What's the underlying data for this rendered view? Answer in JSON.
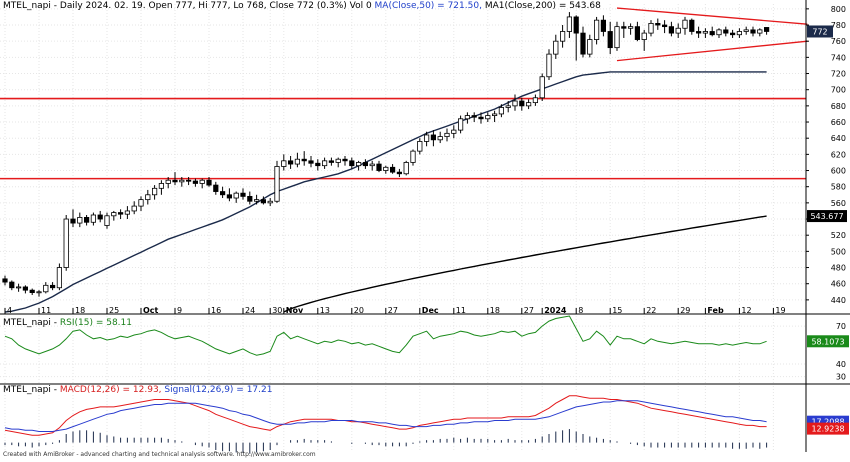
{
  "header_price": {
    "symbol": "MTEL_napi",
    "info": "- Daily 2024. 02. 19. Open 777, Hi 777, Lo 768, Close 772 (0.3%) Vol 0",
    "ma_label": "MA(Close,50) = 721.50,",
    "ma1_label": "MA1(Close,200) = 543.68"
  },
  "header_rsi": {
    "prefix": "MTEL_napi - ",
    "label": "RSI(15) = 58.11"
  },
  "header_macd": {
    "prefix": "MTEL_napi - ",
    "macd_label": "MACD(12,26) = 12.93,",
    "signal_label": "Signal(12,26,9) = 17.21"
  },
  "credit": "Created with AmiBroker - advanced charting and technical analysis software. http://www.amibroker.com",
  "colors": {
    "up_candle": "#ffffff",
    "down_candle": "#000000",
    "ma50": "#1b2a4a",
    "ma200": "#000000",
    "hline": "#e41a1c",
    "rsi": "#1a8a1a",
    "macd": "#e41a1c",
    "signal": "#2a3ccf",
    "grid": "#e6e6e6"
  },
  "chart_data": [
    {
      "type": "candlestick",
      "title": "MTEL_napi - Daily",
      "y_ticks": [
        440,
        460,
        480,
        500,
        520,
        540,
        560,
        580,
        600,
        620,
        640,
        660,
        680,
        700,
        720,
        740,
        760,
        780,
        800
      ],
      "ylim": [
        425,
        806
      ],
      "x_labels": [
        "4",
        "11",
        "18",
        "25",
        "Oct",
        "9",
        "16",
        "24",
        "30",
        "Nov",
        "13",
        "20",
        "27",
        "Dec",
        "11",
        "18",
        "27",
        "2024",
        "8",
        "15",
        "22",
        "29",
        "Feb",
        "12",
        "19"
      ],
      "x_label_bar_index": [
        0,
        5,
        10,
        15,
        20,
        25,
        30,
        35,
        39,
        41,
        46,
        51,
        56,
        61,
        66,
        71,
        76,
        79,
        84,
        89,
        94,
        99,
        103,
        108,
        113
      ],
      "last_price_label": "772",
      "ma200_label": "543.677",
      "ohlc": [
        [
          466,
          470,
          458,
          462
        ],
        [
          462,
          464,
          452,
          455
        ],
        [
          455,
          460,
          450,
          456
        ],
        [
          456,
          458,
          448,
          452
        ],
        [
          452,
          454,
          446,
          449
        ],
        [
          449,
          452,
          444,
          450
        ],
        [
          450,
          462,
          448,
          458
        ],
        [
          458,
          462,
          452,
          455
        ],
        [
          455,
          485,
          452,
          480
        ],
        [
          480,
          545,
          476,
          540
        ],
        [
          540,
          552,
          530,
          535
        ],
        [
          535,
          548,
          530,
          542
        ],
        [
          542,
          545,
          532,
          536
        ],
        [
          536,
          548,
          532,
          545
        ],
        [
          545,
          550,
          536,
          540
        ],
        [
          532,
          548,
          528,
          544
        ],
        [
          544,
          550,
          538,
          548
        ],
        [
          548,
          552,
          540,
          546
        ],
        [
          546,
          556,
          540,
          550
        ],
        [
          550,
          562,
          546,
          556
        ],
        [
          556,
          568,
          550,
          564
        ],
        [
          564,
          576,
          558,
          570
        ],
        [
          570,
          582,
          564,
          578
        ],
        [
          578,
          588,
          570,
          584
        ],
        [
          584,
          592,
          578,
          588
        ],
        [
          588,
          598,
          582,
          586
        ],
        [
          586,
          592,
          580,
          588
        ],
        [
          588,
          592,
          582,
          587
        ],
        [
          587,
          590,
          580,
          584
        ],
        [
          584,
          590,
          578,
          588
        ],
        [
          588,
          592,
          580,
          582
        ],
        [
          582,
          586,
          570,
          574
        ],
        [
          574,
          580,
          566,
          570
        ],
        [
          570,
          578,
          562,
          566
        ],
        [
          566,
          574,
          560,
          572
        ],
        [
          572,
          578,
          564,
          568
        ],
        [
          568,
          574,
          558,
          562
        ],
        [
          562,
          570,
          558,
          564
        ],
        [
          564,
          568,
          558,
          560
        ],
        [
          560,
          566,
          556,
          562
        ],
        [
          562,
          612,
          560,
          605
        ],
        [
          605,
          620,
          600,
          612
        ],
        [
          612,
          618,
          602,
          608
        ],
        [
          608,
          622,
          604,
          614
        ],
        [
          614,
          624,
          606,
          612
        ],
        [
          612,
          618,
          604,
          609
        ],
        [
          609,
          614,
          600,
          606
        ],
        [
          606,
          616,
          602,
          612
        ],
        [
          612,
          616,
          606,
          610
        ],
        [
          610,
          616,
          604,
          614
        ],
        [
          614,
          618,
          606,
          612
        ],
        [
          612,
          616,
          602,
          606
        ],
        [
          606,
          612,
          600,
          610
        ],
        [
          610,
          614,
          602,
          606
        ],
        [
          606,
          612,
          600,
          608
        ],
        [
          608,
          612,
          598,
          600
        ],
        [
          600,
          606,
          596,
          604
        ],
        [
          604,
          608,
          596,
          598
        ],
        [
          598,
          602,
          592,
          596
        ],
        [
          596,
          612,
          594,
          610
        ],
        [
          610,
          626,
          606,
          624
        ],
        [
          624,
          640,
          620,
          636
        ],
        [
          636,
          648,
          630,
          644
        ],
        [
          644,
          650,
          630,
          638
        ],
        [
          638,
          648,
          634,
          642
        ],
        [
          642,
          652,
          636,
          646
        ],
        [
          646,
          656,
          640,
          650
        ],
        [
          650,
          668,
          646,
          664
        ],
        [
          664,
          672,
          658,
          668
        ],
        [
          668,
          672,
          660,
          666
        ],
        [
          666,
          672,
          658,
          664
        ],
        [
          664,
          672,
          660,
          668
        ],
        [
          668,
          674,
          660,
          670
        ],
        [
          670,
          682,
          666,
          678
        ],
        [
          678,
          686,
          672,
          680
        ],
        [
          680,
          694,
          674,
          686
        ],
        [
          686,
          690,
          674,
          680
        ],
        [
          680,
          688,
          676,
          684
        ],
        [
          684,
          694,
          680,
          690
        ],
        [
          690,
          720,
          686,
          716
        ],
        [
          716,
          750,
          712,
          744
        ],
        [
          744,
          768,
          738,
          760
        ],
        [
          760,
          780,
          752,
          772
        ],
        [
          772,
          796,
          764,
          790
        ],
        [
          790,
          792,
          736,
          770
        ],
        [
          770,
          778,
          740,
          744
        ],
        [
          744,
          768,
          740,
          762
        ],
        [
          762,
          790,
          756,
          786
        ],
        [
          786,
          792,
          766,
          772
        ],
        [
          772,
          784,
          744,
          752
        ],
        [
          752,
          784,
          748,
          778
        ],
        [
          778,
          784,
          764,
          776
        ],
        [
          776,
          782,
          768,
          778
        ],
        [
          778,
          784,
          760,
          762
        ],
        [
          762,
          774,
          748,
          770
        ],
        [
          770,
          786,
          766,
          782
        ],
        [
          782,
          788,
          774,
          780
        ],
        [
          780,
          786,
          770,
          778
        ],
        [
          778,
          784,
          766,
          770
        ],
        [
          770,
          782,
          764,
          776
        ],
        [
          776,
          790,
          768,
          786
        ],
        [
          786,
          788,
          768,
          772
        ],
        [
          772,
          778,
          764,
          770
        ],
        [
          770,
          776,
          764,
          772
        ],
        [
          772,
          778,
          766,
          768
        ],
        [
          768,
          776,
          764,
          774
        ],
        [
          774,
          778,
          766,
          770
        ],
        [
          770,
          774,
          764,
          768
        ],
        [
          768,
          776,
          764,
          772
        ],
        [
          772,
          778,
          768,
          774
        ],
        [
          774,
          778,
          766,
          770
        ],
        [
          770,
          776,
          766,
          774
        ],
        [
          777,
          777,
          768,
          772
        ]
      ],
      "ma50": {
        "from_bar": 0,
        "values": [
          425,
          426,
          428,
          430,
          433,
          436,
          440,
          444,
          449,
          454,
          459,
          463,
          467,
          471,
          475,
          479,
          483,
          487,
          491,
          495,
          499,
          503,
          507,
          511,
          515,
          518,
          521,
          524,
          527,
          530,
          533,
          536,
          539,
          543,
          547,
          551,
          555,
          560,
          565,
          570,
          574,
          577,
          580,
          583,
          586,
          588,
          590,
          592,
          594,
          596,
          599,
          602,
          606,
          610,
          614,
          618,
          622,
          626,
          630,
          634,
          638,
          642,
          646,
          649,
          652,
          655,
          658,
          661,
          664,
          667,
          670,
          673,
          676,
          680,
          684,
          688,
          692,
          695,
          698,
          701,
          704,
          707,
          710,
          713,
          716,
          718,
          719,
          720,
          721,
          722,
          722,
          722,
          722,
          722,
          722,
          722,
          722,
          722,
          722,
          722,
          722,
          722,
          722,
          722,
          722,
          722,
          722,
          722,
          722,
          722,
          722,
          722,
          722
        ]
      },
      "horizontal_lines": [
        689,
        590
      ],
      "triangle_lines": [
        {
          "from_bar": 90,
          "from_y": 801,
          "to_bar": 118,
          "to_y": 781
        },
        {
          "from_bar": 90,
          "from_y": 736,
          "to_bar": 118,
          "to_y": 760
        }
      ]
    },
    {
      "type": "line",
      "title": "RSI(15)",
      "y_ticks": [
        30,
        40,
        70
      ],
      "ylim": [
        25,
        78
      ],
      "value_label": "58.1073",
      "series": [
        {
          "name": "RSI(15)",
          "values": [
            62,
            60,
            55,
            52,
            50,
            48,
            50,
            52,
            55,
            60,
            66,
            67,
            63,
            60,
            61,
            59,
            60,
            62,
            61,
            63,
            64,
            66,
            67,
            65,
            62,
            60,
            61,
            62,
            60,
            58,
            55,
            52,
            50,
            48,
            50,
            52,
            49,
            47,
            48,
            50,
            62,
            65,
            60,
            62,
            60,
            58,
            56,
            58,
            57,
            59,
            58,
            56,
            57,
            55,
            56,
            54,
            52,
            50,
            49,
            55,
            62,
            64,
            66,
            60,
            62,
            63,
            64,
            66,
            65,
            63,
            62,
            63,
            64,
            66,
            65,
            66,
            62,
            64,
            65,
            70,
            74,
            76,
            77,
            78,
            68,
            58,
            60,
            66,
            62,
            55,
            62,
            60,
            60,
            58,
            56,
            60,
            58,
            57,
            56,
            57,
            58,
            57,
            56,
            56,
            56,
            55,
            56,
            55,
            56,
            57,
            56,
            56,
            58
          ]
        }
      ]
    },
    {
      "type": "line",
      "title": "MACD(12,26)",
      "ylim": [
        -6,
        46
      ],
      "macd_label": "12.9238",
      "signal_label": "17.2088",
      "series": [
        {
          "name": "MACD(12,26)",
          "values": [
            10,
            9,
            8,
            7,
            6,
            6,
            7,
            8,
            12,
            18,
            22,
            25,
            27,
            28,
            29,
            29,
            29,
            30,
            31,
            32,
            33,
            34,
            35,
            35,
            35,
            34,
            33,
            32,
            30,
            28,
            26,
            23,
            21,
            19,
            17,
            15,
            13,
            12,
            11,
            10,
            13,
            15,
            17,
            18,
            19,
            19,
            19,
            19,
            19,
            18,
            18,
            17,
            17,
            16,
            15,
            14,
            13,
            12,
            11,
            11,
            12,
            14,
            15,
            16,
            17,
            18,
            19,
            19,
            20,
            20,
            20,
            20,
            20,
            20,
            21,
            21,
            21,
            21,
            22,
            25,
            28,
            32,
            35,
            38,
            38,
            37,
            36,
            36,
            36,
            35,
            35,
            34,
            33,
            32,
            30,
            28,
            27,
            26,
            25,
            24,
            23,
            22,
            21,
            20,
            19,
            18,
            17,
            16,
            15,
            14,
            14,
            13,
            13
          ]
        },
        {
          "name": "Signal(12,26,9)",
          "values": [
            12,
            11,
            11,
            10,
            10,
            9,
            9,
            9,
            10,
            11,
            13,
            15,
            17,
            19,
            21,
            23,
            24,
            26,
            27,
            28,
            29,
            30,
            31,
            31,
            32,
            32,
            32,
            32,
            32,
            31,
            30,
            29,
            28,
            26,
            25,
            23,
            22,
            20,
            18,
            16,
            15,
            15,
            15,
            16,
            16,
            17,
            17,
            17,
            18,
            18,
            18,
            18,
            17,
            17,
            17,
            16,
            16,
            15,
            14,
            14,
            13,
            13,
            13,
            14,
            14,
            15,
            15,
            16,
            16,
            17,
            17,
            17,
            18,
            18,
            18,
            19,
            19,
            19,
            19,
            20,
            21,
            23,
            25,
            27,
            29,
            30,
            31,
            32,
            33,
            33,
            34,
            34,
            34,
            34,
            33,
            32,
            31,
            30,
            29,
            28,
            27,
            26,
            25,
            24,
            23,
            22,
            21,
            21,
            20,
            19,
            18,
            18,
            17
          ]
        }
      ]
    }
  ]
}
